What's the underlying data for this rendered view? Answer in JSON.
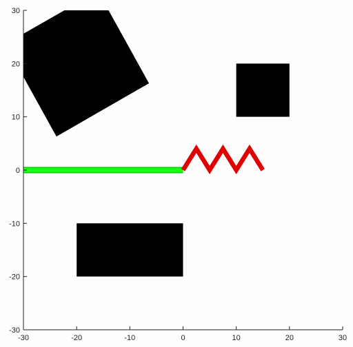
{
  "chart_data": {
    "type": "scatter",
    "title": "",
    "xlabel": "",
    "ylabel": "",
    "xlim": [
      -30,
      30
    ],
    "ylim": [
      -30,
      30
    ],
    "grid": false,
    "xticks": [
      -30,
      -20,
      -10,
      0,
      10,
      20,
      30
    ],
    "yticks": [
      -30,
      -20,
      -10,
      0,
      10,
      20,
      30
    ],
    "xtick_labels": [
      "-30",
      "-20",
      "-10",
      "0",
      "10",
      "20",
      "30"
    ],
    "ytick_labels": [
      "-30",
      "-20",
      "-10",
      "0",
      "10",
      "20",
      "30"
    ],
    "obstacles": [
      {
        "shape": "pentagon",
        "color": "#000000",
        "points": [
          [
            -30,
            25.6
          ],
          [
            -30,
            17.5
          ],
          [
            -23.8,
            6.3
          ],
          [
            -6.4,
            16.3
          ],
          [
            -14,
            30
          ],
          [
            -22.3,
            30
          ]
        ]
      },
      {
        "shape": "square",
        "color": "#000000",
        "points": [
          [
            10,
            10
          ],
          [
            20,
            10
          ],
          [
            20,
            20
          ],
          [
            10,
            20
          ]
        ]
      },
      {
        "shape": "rectangle",
        "color": "#000000",
        "points": [
          [
            -20,
            -20
          ],
          [
            0,
            -20
          ],
          [
            0,
            -10
          ],
          [
            -20,
            -10
          ]
        ]
      }
    ],
    "series": [
      {
        "color": "#19ff19",
        "stroke_color": "#00cc00",
        "points": [
          [
            -30,
            0
          ],
          [
            0,
            0
          ]
        ]
      },
      {
        "color": "#e00000",
        "points": [
          [
            0,
            0
          ],
          [
            2.5,
            4
          ],
          [
            5,
            0
          ],
          [
            7.5,
            4
          ],
          [
            10,
            0
          ],
          [
            12.5,
            4
          ],
          [
            15,
            0
          ]
        ]
      }
    ]
  }
}
